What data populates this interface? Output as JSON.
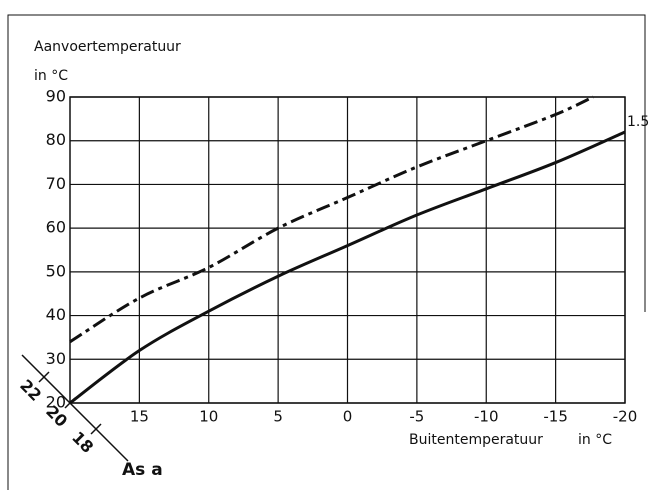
{
  "chart_data": {
    "type": "line",
    "y_label": "Aanvoertemperatuur",
    "y_unit": "in °C",
    "x_label": "Buitentemperatuur",
    "x_unit": "in °C",
    "x": [
      20,
      15,
      10,
      5,
      0,
      -5,
      -10,
      -15,
      -20
    ],
    "xlim": [
      20,
      -20
    ],
    "xticks": [
      15,
      10,
      5,
      0,
      -5,
      -10,
      -15,
      -20
    ],
    "ylim": [
      20,
      90
    ],
    "yticks": [
      20,
      30,
      40,
      50,
      60,
      70,
      80,
      90
    ],
    "grid": true,
    "series": [
      {
        "name": "1.5",
        "color": "#111111",
        "style": "solid",
        "values": [
          20,
          32,
          41,
          49,
          56,
          63,
          69,
          75,
          82
        ]
      },
      {
        "color": "#111111",
        "style": "dashdot",
        "values": [
          34,
          44,
          51,
          60,
          67,
          74,
          80,
          86,
          null
        ],
        "end": {
          "x": -17.7,
          "y": 90
        }
      }
    ],
    "room_axis": {
      "label": "As a",
      "ticks": [
        22,
        20,
        18
      ]
    }
  }
}
